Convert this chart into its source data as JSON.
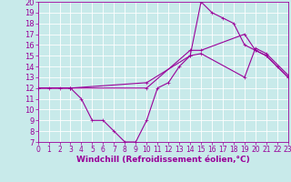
{
  "bg_color": "#c8eaea",
  "line_color": "#990099",
  "grid_color": "#ffffff",
  "xlabel": "Windchill (Refroidissement éolien,°C)",
  "xlabel_fontsize": 6.5,
  "ytick_fontsize": 6,
  "xtick_fontsize": 5.5,
  "ylim": [
    7,
    20
  ],
  "xlim": [
    0,
    23
  ],
  "yticks": [
    7,
    8,
    9,
    10,
    11,
    12,
    13,
    14,
    15,
    16,
    17,
    18,
    19,
    20
  ],
  "xticks": [
    0,
    1,
    2,
    3,
    4,
    5,
    6,
    7,
    8,
    9,
    10,
    11,
    12,
    13,
    14,
    15,
    16,
    17,
    18,
    19,
    20,
    21,
    22,
    23
  ],
  "line1_x": [
    0,
    1,
    2,
    3,
    4,
    5,
    6,
    7,
    8,
    9,
    10,
    11,
    12,
    13,
    14,
    15,
    16,
    17,
    18,
    19,
    20,
    21,
    22,
    23
  ],
  "line1_y": [
    12,
    12,
    12,
    12,
    11,
    9,
    9,
    8,
    7,
    7,
    9,
    12,
    12.5,
    14,
    15,
    20,
    19,
    18.5,
    18,
    16,
    15.5,
    15,
    14,
    13
  ],
  "line2_x": [
    0,
    3,
    10,
    14,
    15,
    19,
    20,
    21,
    23
  ],
  "line2_y": [
    12,
    12,
    12,
    15.5,
    15.5,
    17,
    15.5,
    15,
    13
  ],
  "line3_x": [
    0,
    3,
    10,
    14,
    15,
    19,
    20,
    21,
    23
  ],
  "line3_y": [
    12,
    12,
    12.5,
    15,
    15.2,
    13,
    15.7,
    15.2,
    13.2
  ]
}
